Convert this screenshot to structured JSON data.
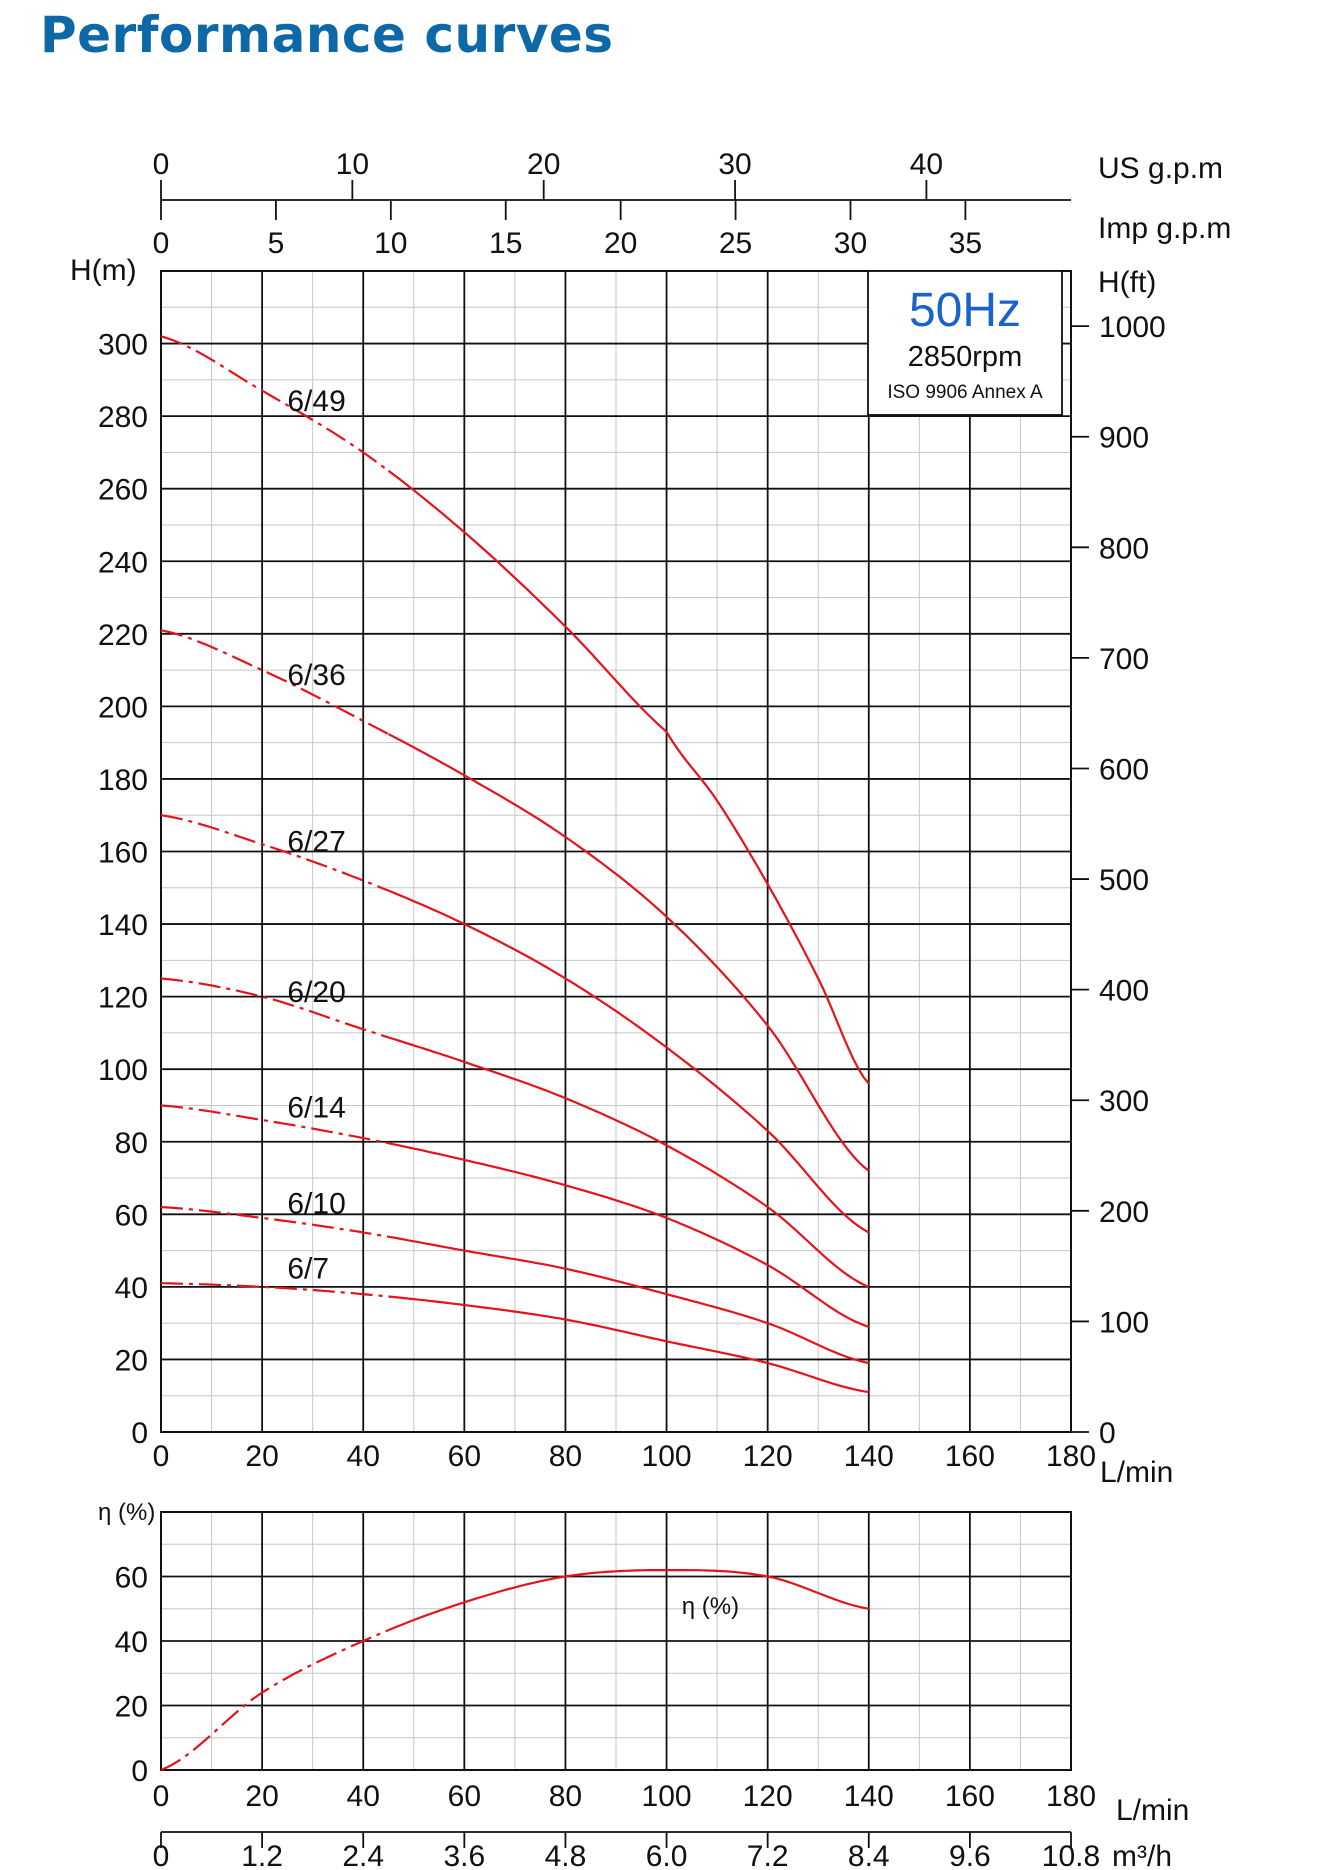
{
  "title": "Performance curves",
  "info_box": {
    "freq": "50Hz",
    "speed": "2850rpm",
    "standard": "ISO 9906 Annex A"
  },
  "colors": {
    "title": "#0d68a8",
    "freq": "#1a63c8",
    "curve": "#e3141b"
  },
  "chart_data": [
    {
      "type": "line",
      "name": "head",
      "xlabel": "L/min",
      "ylabel": "H(m)",
      "y2label": "H(ft)",
      "xlim": [
        0,
        180
      ],
      "ylim": [
        0,
        320
      ],
      "y2lim": [
        0,
        1049.9
      ],
      "xticks": [
        0,
        20,
        40,
        60,
        80,
        100,
        120,
        140,
        160,
        180
      ],
      "yticks": [
        0,
        20,
        40,
        60,
        80,
        100,
        120,
        140,
        160,
        180,
        200,
        220,
        240,
        260,
        280,
        300
      ],
      "y2ticks": [
        0,
        100,
        200,
        300,
        400,
        500,
        600,
        700,
        800,
        900,
        1000
      ],
      "top_axes": [
        {
          "label": "US g.p.m",
          "ticks": [
            0,
            10,
            20,
            30,
            40
          ],
          "lpm_per_unit": 3.785
        },
        {
          "label": "Imp g.p.m",
          "ticks": [
            0,
            5,
            10,
            15,
            20,
            25,
            30,
            35
          ],
          "lpm_per_unit": 4.546
        }
      ],
      "dashed_until_x": 45,
      "series": [
        {
          "name": "6/49",
          "x": [
            0,
            20,
            40,
            60,
            80,
            100,
            110,
            120,
            130,
            140
          ],
          "y": [
            302,
            287,
            270,
            248,
            222,
            193,
            174,
            151,
            125,
            96
          ]
        },
        {
          "name": "6/36",
          "x": [
            0,
            20,
            40,
            60,
            80,
            100,
            120,
            140
          ],
          "y": [
            221,
            210,
            196,
            181,
            164,
            142,
            112,
            72
          ]
        },
        {
          "name": "6/27",
          "x": [
            0,
            20,
            40,
            60,
            80,
            100,
            120,
            140
          ],
          "y": [
            170,
            162,
            152,
            140,
            125,
            106,
            83,
            55
          ]
        },
        {
          "name": "6/20",
          "x": [
            0,
            20,
            40,
            60,
            80,
            100,
            120,
            140
          ],
          "y": [
            125,
            120,
            111,
            102,
            92,
            79,
            62,
            40
          ]
        },
        {
          "name": "6/14",
          "x": [
            0,
            20,
            40,
            60,
            80,
            100,
            120,
            140
          ],
          "y": [
            90,
            86,
            81,
            75,
            68,
            59,
            46,
            29
          ]
        },
        {
          "name": "6/10",
          "x": [
            0,
            20,
            40,
            60,
            80,
            100,
            120,
            140
          ],
          "y": [
            62,
            59,
            55,
            50,
            45,
            38,
            30,
            19
          ]
        },
        {
          "name": "6/7",
          "x": [
            0,
            20,
            40,
            60,
            80,
            100,
            120,
            140
          ],
          "y": [
            41,
            40,
            38,
            35,
            31,
            25,
            19,
            11
          ]
        }
      ]
    },
    {
      "type": "line",
      "name": "efficiency",
      "xlabel": "L/min",
      "ylabel": "η (%)",
      "x2label": "m³/h",
      "xlim": [
        0,
        180
      ],
      "ylim": [
        0,
        80
      ],
      "xticks": [
        0,
        20,
        40,
        60,
        80,
        100,
        120,
        140,
        160,
        180
      ],
      "x2ticks": [
        "0",
        "1.2",
        "2.4",
        "3.6",
        "4.8",
        "6.0",
        "7.2",
        "8.4",
        "9.6",
        "10.8"
      ],
      "yticks": [
        0,
        20,
        40,
        60
      ],
      "dashed_until_x": 45,
      "series": [
        {
          "name": "η (%)",
          "x": [
            0,
            20,
            40,
            60,
            80,
            100,
            120,
            140
          ],
          "y": [
            0,
            24,
            40,
            52,
            60,
            62,
            60,
            50
          ]
        }
      ]
    }
  ]
}
